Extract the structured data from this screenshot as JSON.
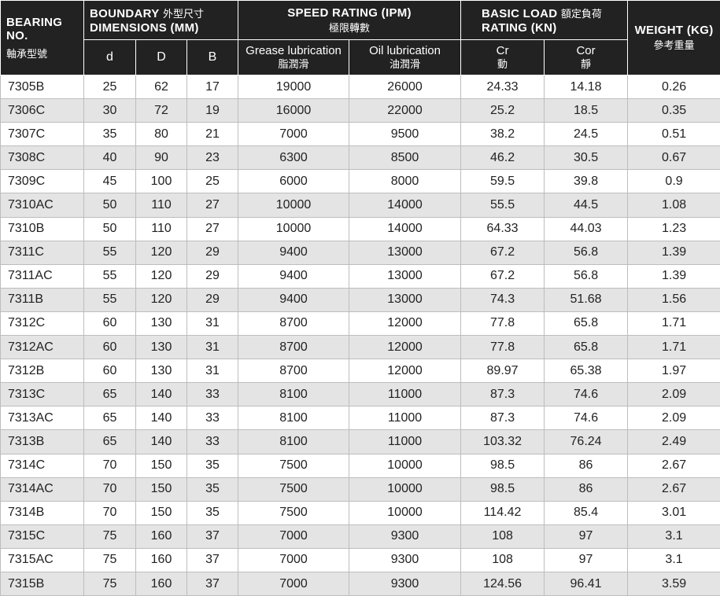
{
  "header": {
    "bearing_en": "BEARING NO.",
    "bearing_zh": "軸承型號",
    "boundary_en1": "BOUNDARY",
    "boundary_zh": "外型尺寸",
    "boundary_en2": "DIMENSIONS (MM)",
    "speed_en": "SPEED RATING (IPM)",
    "speed_zh": "極限轉數",
    "load_en1": "BASIC LOAD",
    "load_zh": "額定負荷",
    "load_en2": "RATING (KN)",
    "weight_en": "WEIGHT (KG)",
    "weight_zh": "參考重量",
    "d": "d",
    "D": "D",
    "B": "B",
    "grease_en": "Grease lubrication",
    "grease_zh": "脂潤滑",
    "oil_en": "Oil lubrication",
    "oil_zh": "油潤滑",
    "cr_en": "Cr",
    "cr_zh": "動",
    "cor_en": "Cor",
    "cor_zh": "靜"
  },
  "rows": [
    [
      "7305B",
      "25",
      "62",
      "17",
      "19000",
      "26000",
      "24.33",
      "14.18",
      "0.26"
    ],
    [
      "7306C",
      "30",
      "72",
      "19",
      "16000",
      "22000",
      "25.2",
      "18.5",
      "0.35"
    ],
    [
      "7307C",
      "35",
      "80",
      "21",
      "7000",
      "9500",
      "38.2",
      "24.5",
      "0.51"
    ],
    [
      "7308C",
      "40",
      "90",
      "23",
      "6300",
      "8500",
      "46.2",
      "30.5",
      "0.67"
    ],
    [
      "7309C",
      "45",
      "100",
      "25",
      "6000",
      "8000",
      "59.5",
      "39.8",
      "0.9"
    ],
    [
      "7310AC",
      "50",
      "110",
      "27",
      "10000",
      "14000",
      "55.5",
      "44.5",
      "1.08"
    ],
    [
      "7310B",
      "50",
      "110",
      "27",
      "10000",
      "14000",
      "64.33",
      "44.03",
      "1.23"
    ],
    [
      "7311C",
      "55",
      "120",
      "29",
      "9400",
      "13000",
      "67.2",
      "56.8",
      "1.39"
    ],
    [
      "7311AC",
      "55",
      "120",
      "29",
      "9400",
      "13000",
      "67.2",
      "56.8",
      "1.39"
    ],
    [
      "7311B",
      "55",
      "120",
      "29",
      "9400",
      "13000",
      "74.3",
      "51.68",
      "1.56"
    ],
    [
      "7312C",
      "60",
      "130",
      "31",
      "8700",
      "12000",
      "77.8",
      "65.8",
      "1.71"
    ],
    [
      "7312AC",
      "60",
      "130",
      "31",
      "8700",
      "12000",
      "77.8",
      "65.8",
      "1.71"
    ],
    [
      "7312B",
      "60",
      "130",
      "31",
      "8700",
      "12000",
      "89.97",
      "65.38",
      "1.97"
    ],
    [
      "7313C",
      "65",
      "140",
      "33",
      "8100",
      "11000",
      "87.3",
      "74.6",
      "2.09"
    ],
    [
      "7313AC",
      "65",
      "140",
      "33",
      "8100",
      "11000",
      "87.3",
      "74.6",
      "2.09"
    ],
    [
      "7313B",
      "65",
      "140",
      "33",
      "8100",
      "11000",
      "103.32",
      "76.24",
      "2.49"
    ],
    [
      "7314C",
      "70",
      "150",
      "35",
      "7500",
      "10000",
      "98.5",
      "86",
      "2.67"
    ],
    [
      "7314AC",
      "70",
      "150",
      "35",
      "7500",
      "10000",
      "98.5",
      "86",
      "2.67"
    ],
    [
      "7314B",
      "70",
      "150",
      "35",
      "7500",
      "10000",
      "114.42",
      "85.4",
      "3.01"
    ],
    [
      "7315C",
      "75",
      "160",
      "37",
      "7000",
      "9300",
      "108",
      "97",
      "3.1"
    ],
    [
      "7315AC",
      "75",
      "160",
      "37",
      "7000",
      "9300",
      "108",
      "97",
      "3.1"
    ],
    [
      "7315B",
      "75",
      "160",
      "37",
      "7000",
      "9300",
      "124.56",
      "96.41",
      "3.59"
    ]
  ]
}
